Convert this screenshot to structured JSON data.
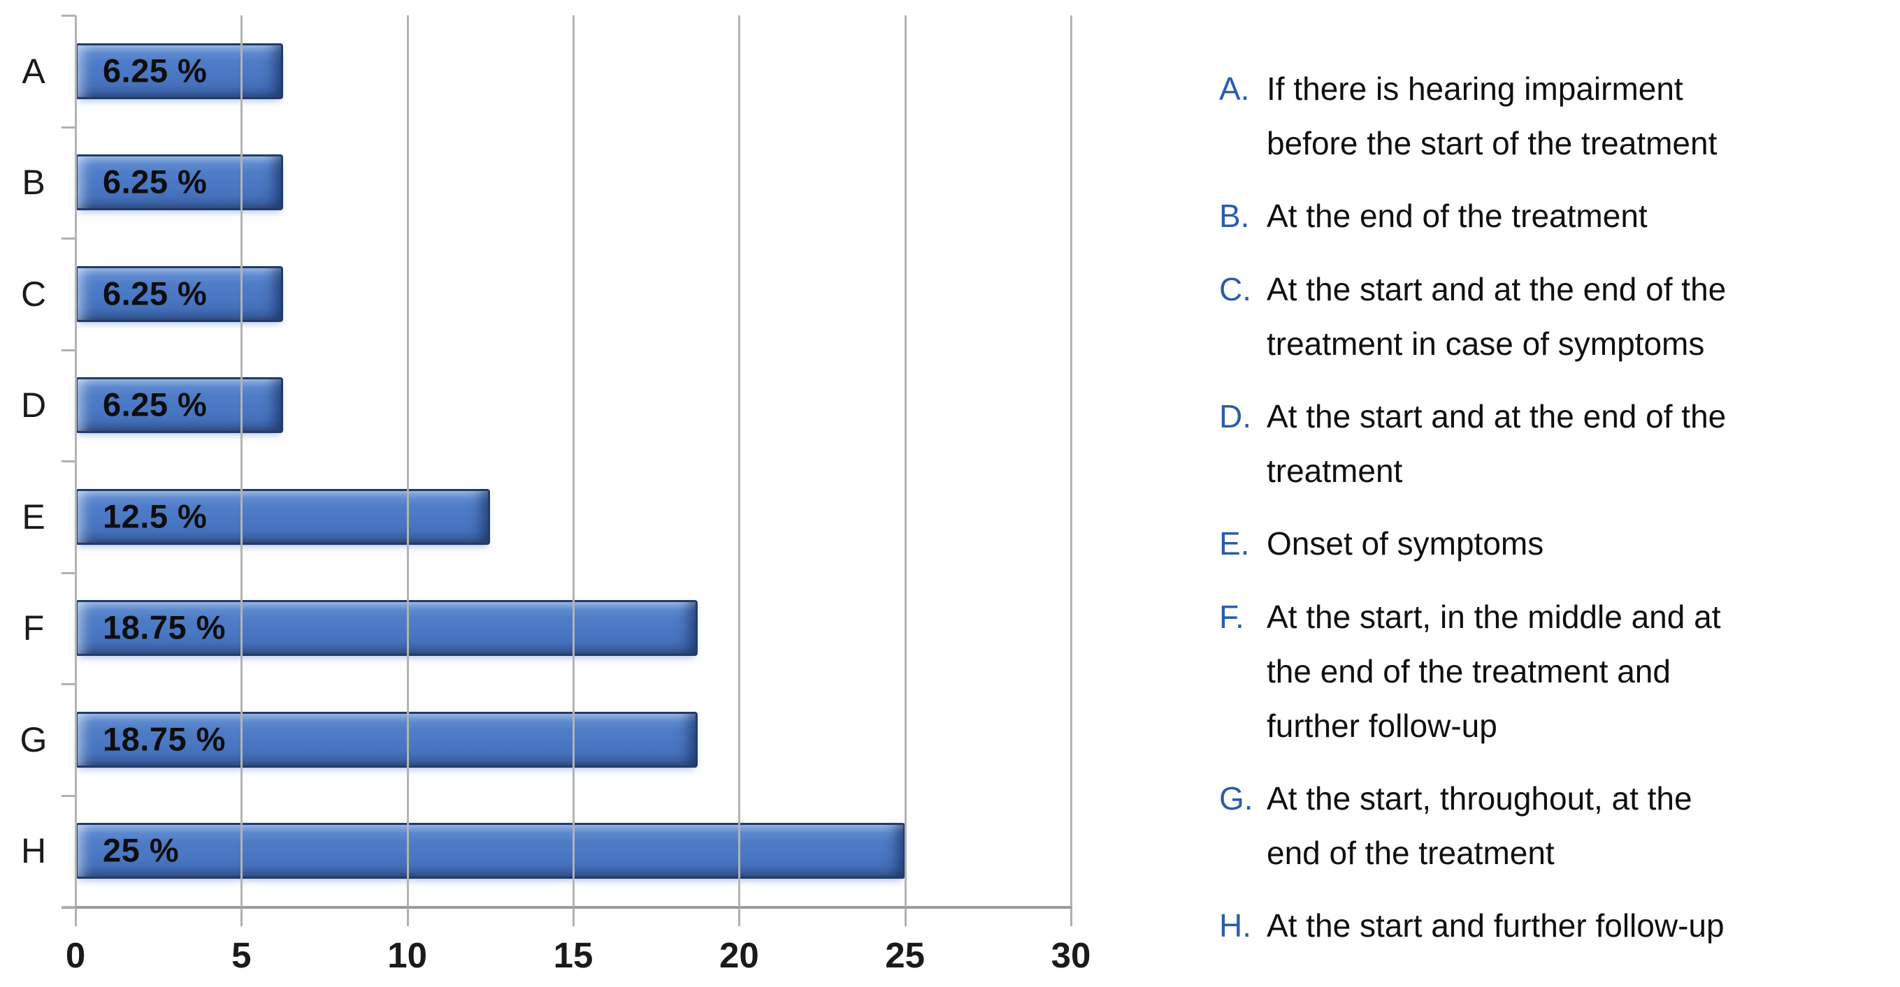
{
  "chart_data": {
    "type": "bar",
    "orientation": "horizontal",
    "title": "",
    "xlabel": "",
    "ylabel": "",
    "categories": [
      "A",
      "B",
      "C",
      "D",
      "E",
      "F",
      "G",
      "H"
    ],
    "values": [
      6.25,
      6.25,
      6.25,
      6.25,
      12.5,
      18.75,
      18.75,
      25
    ],
    "bar_labels": [
      "6.25 %",
      "6.25 %",
      "6.25 %",
      "6.25 %",
      "12.5 %",
      "18.75 %",
      "18.75 %",
      "25 %"
    ],
    "xlim": [
      0,
      30
    ],
    "x_ticks": [
      0,
      5,
      10,
      15,
      20,
      25,
      30
    ],
    "x_tick_labels": [
      "0",
      "5",
      "10",
      "15",
      "20",
      "25",
      "30"
    ],
    "grid": true,
    "legend_position": "right",
    "bar_color": "#4a77c3",
    "bar_highlight": "#a3c0ea",
    "bar_edge_color": "#203c6d",
    "gridline_color": "#b3b3b3",
    "axis_color": "#9b9b9b",
    "value_label_color": "#0d0d0d",
    "tick_label_color": "#1a1a1a"
  },
  "legend": {
    "letter_color": "#2b5cac",
    "items": [
      {
        "letter": "A.",
        "lines": [
          "If there is hearing impairment",
          "before the start of the treatment"
        ]
      },
      {
        "letter": "B.",
        "lines": [
          "At the end of the treatment"
        ]
      },
      {
        "letter": "C.",
        "lines": [
          "At the start and at the end of the",
          "treatment in case of symptoms"
        ]
      },
      {
        "letter": "D.",
        "lines": [
          "At the start and at the end of the",
          "treatment"
        ]
      },
      {
        "letter": "E.",
        "lines": [
          "Onset of symptoms"
        ]
      },
      {
        "letter": "F.",
        "lines": [
          "At the start, in the middle and at",
          "the end of the treatment and",
          "further follow-up"
        ]
      },
      {
        "letter": "G.",
        "lines": [
          "At the start, throughout, at the",
          "end of the treatment"
        ]
      },
      {
        "letter": "H.",
        "lines": [
          "At the start and further follow-up"
        ]
      }
    ]
  }
}
